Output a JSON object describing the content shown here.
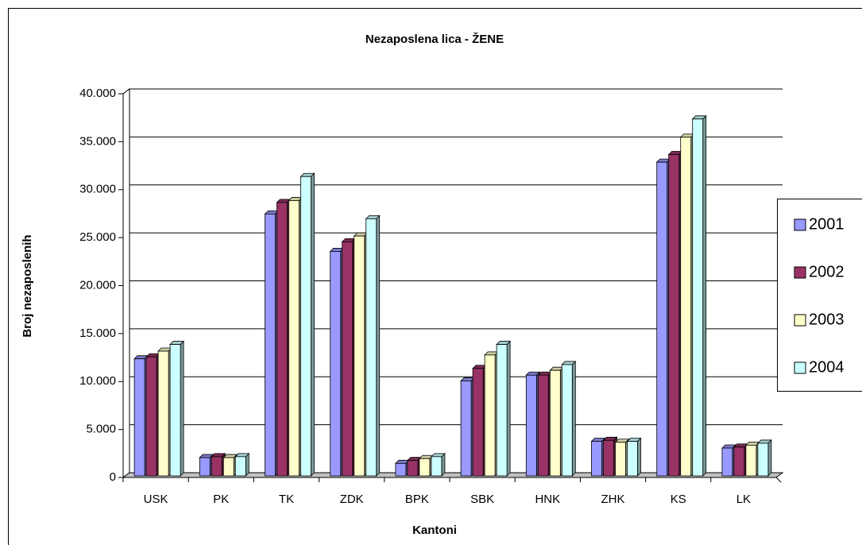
{
  "chart_data": {
    "type": "bar",
    "title": "Nezaposlena lica - ŽENE",
    "y_label": "Broj nezaposlenih",
    "x_label": "Kantoni",
    "categories": [
      "USK",
      "PK",
      "TK",
      "ZDK",
      "BPK",
      "SBK",
      "HNK",
      "ZHK",
      "KS",
      "LK"
    ],
    "series": [
      {
        "name": "2001",
        "color": "#9999ff",
        "values": [
          12200,
          1900,
          27300,
          23400,
          1300,
          9900,
          10500,
          3600,
          32700,
          2900
        ]
      },
      {
        "name": "2002",
        "color": "#993366",
        "values": [
          12400,
          2000,
          28500,
          24400,
          1600,
          11200,
          10500,
          3700,
          33500,
          3000
        ]
      },
      {
        "name": "2003",
        "color": "#ffffcc",
        "values": [
          13000,
          1900,
          28700,
          25000,
          1800,
          12600,
          11000,
          3500,
          35300,
          3200
        ]
      },
      {
        "name": "2004",
        "color": "#ccffff",
        "values": [
          13700,
          2000,
          31200,
          26800,
          2000,
          13700,
          11600,
          3600,
          37200,
          3400
        ]
      }
    ],
    "ylim": [
      0,
      40000
    ],
    "yticks": [
      0,
      {
        "value": 5000,
        "label": "5.000"
      },
      {
        "value": 10000,
        "label": "10.000"
      },
      {
        "value": 15000,
        "label": "15.000"
      },
      {
        "value": 20000,
        "label": "20.000"
      },
      {
        "value": 25000,
        "label": "25.000"
      },
      {
        "value": 30000,
        "label": "30.000"
      },
      {
        "value": 35000,
        "label": "35.000"
      },
      {
        "value": 40000,
        "label": "40.000"
      }
    ],
    "grid": true,
    "legend": "right"
  }
}
